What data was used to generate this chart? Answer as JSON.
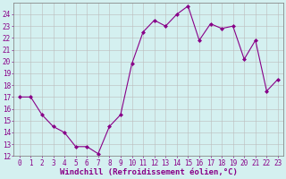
{
  "x": [
    0,
    1,
    2,
    3,
    4,
    5,
    6,
    7,
    8,
    9,
    10,
    11,
    12,
    13,
    14,
    15,
    16,
    17,
    18,
    19,
    20,
    21,
    22,
    23
  ],
  "y": [
    17.0,
    17.0,
    15.5,
    14.5,
    14.0,
    12.8,
    12.8,
    12.2,
    14.5,
    15.5,
    19.8,
    22.5,
    23.5,
    23.0,
    24.0,
    24.7,
    21.8,
    23.2,
    22.8,
    23.0,
    20.2,
    21.8,
    17.5,
    18.5
  ],
  "line_color": "#880088",
  "marker": "D",
  "markersize": 2,
  "linewidth": 0.8,
  "xlabel": "Windchill (Refroidissement éolien,°C)",
  "xlabel_fontsize": 6.5,
  "xlabel_color": "#880088",
  "bg_color": "#d4f0f0",
  "grid_color": "#bbbbbb",
  "ylim": [
    12,
    25
  ],
  "xlim_min": -0.5,
  "xlim_max": 23.5,
  "yticks": [
    12,
    13,
    14,
    15,
    16,
    17,
    18,
    19,
    20,
    21,
    22,
    23,
    24
  ],
  "xticks": [
    0,
    1,
    2,
    3,
    4,
    5,
    6,
    7,
    8,
    9,
    10,
    11,
    12,
    13,
    14,
    15,
    16,
    17,
    18,
    19,
    20,
    21,
    22,
    23
  ],
  "tick_fontsize": 5.5,
  "tick_color": "#880088",
  "spine_color": "#888888"
}
